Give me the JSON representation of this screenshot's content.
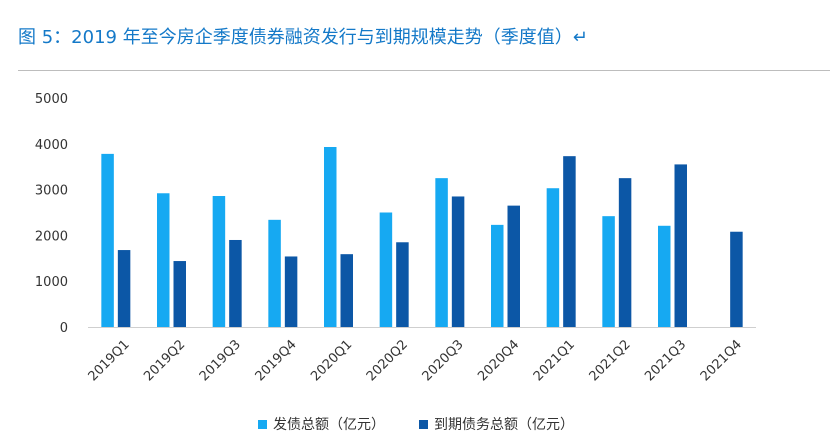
{
  "header": {
    "title": "图 5：2019 年至今房企季度债券融资发行与到期规模走势（季度值）↵"
  },
  "colors": {
    "issuance": "#16a9f2",
    "maturity": "#0c57a6",
    "title": "#1479c8"
  },
  "chart_data": {
    "type": "bar",
    "title": "",
    "xlabel": "",
    "ylabel": "",
    "ylim": [
      0,
      5000
    ],
    "yticks": [
      0,
      1000,
      2000,
      3000,
      4000,
      5000
    ],
    "grid": false,
    "legend_position": "bottom",
    "categories": [
      "2019Q1",
      "2019Q2",
      "2019Q3",
      "2019Q4",
      "2020Q1",
      "2020Q2",
      "2020Q3",
      "2020Q4",
      "2021Q1",
      "2021Q2",
      "2021Q3",
      "2021Q4"
    ],
    "series": [
      {
        "name": "发债总额（亿元）",
        "values": [
          3780,
          2920,
          2860,
          2340,
          3930,
          2500,
          3250,
          2230,
          3030,
          2420,
          2210,
          null
        ]
      },
      {
        "name": "到期债务总额（亿元）",
        "values": [
          1680,
          1440,
          1900,
          1540,
          1590,
          1850,
          2850,
          2650,
          3730,
          3250,
          3550,
          2080
        ]
      }
    ]
  }
}
